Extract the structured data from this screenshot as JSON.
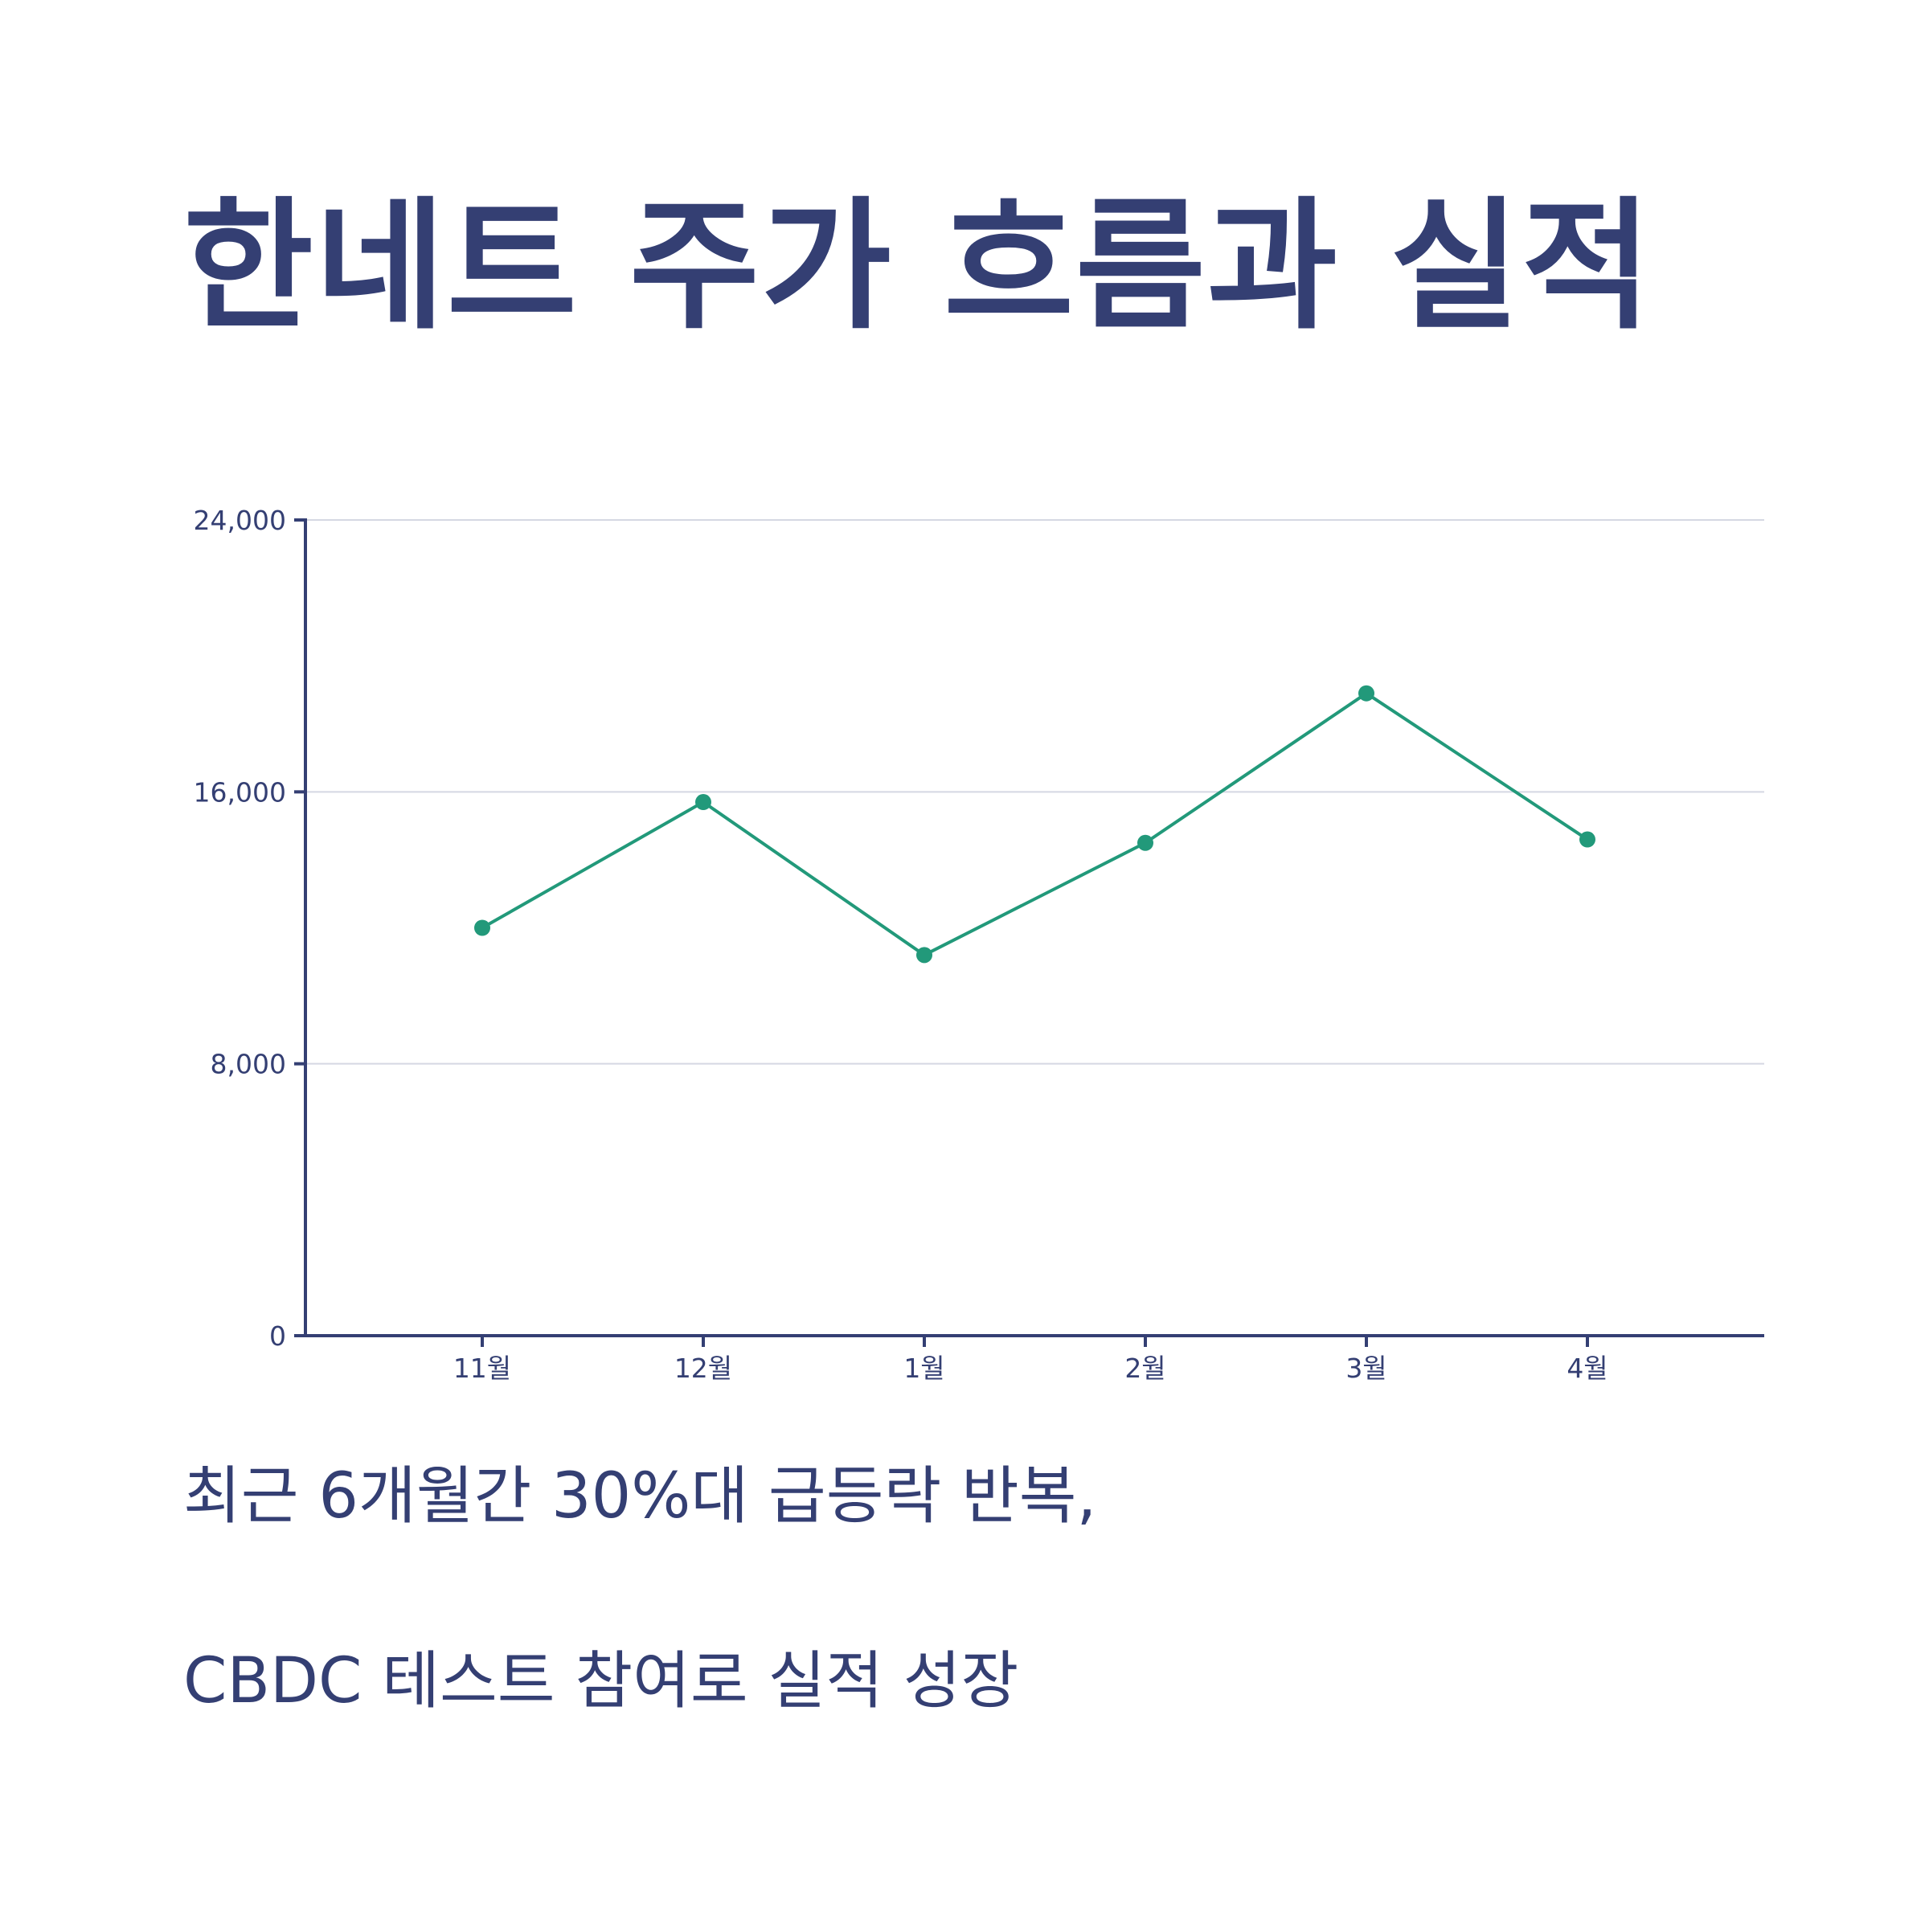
{
  "title": "한네트 주가 흐름과 실적",
  "captions": [
    "최근 6개월간 30%대 급등락 반복,",
    "CBDC 테스트 참여로 실적 성장"
  ],
  "colors": {
    "text": "#343f73",
    "axis": "#343f73",
    "grid": "#d5d8e3",
    "series": "#22997a"
  },
  "chart_data": {
    "type": "line",
    "categories": [
      "11월",
      "12월",
      "1월",
      "2월",
      "3월",
      "4월"
    ],
    "series": [
      {
        "values": [
          12000,
          15700,
          11200,
          14500,
          18900,
          14600
        ]
      }
    ],
    "ylim": [
      0,
      24000
    ],
    "yticks": [
      0,
      8000,
      16000,
      24000
    ],
    "ytick_labels": [
      "0",
      "8,000",
      "16,000",
      "24,000"
    ],
    "grid": true,
    "xlabel": "",
    "ylabel": ""
  }
}
